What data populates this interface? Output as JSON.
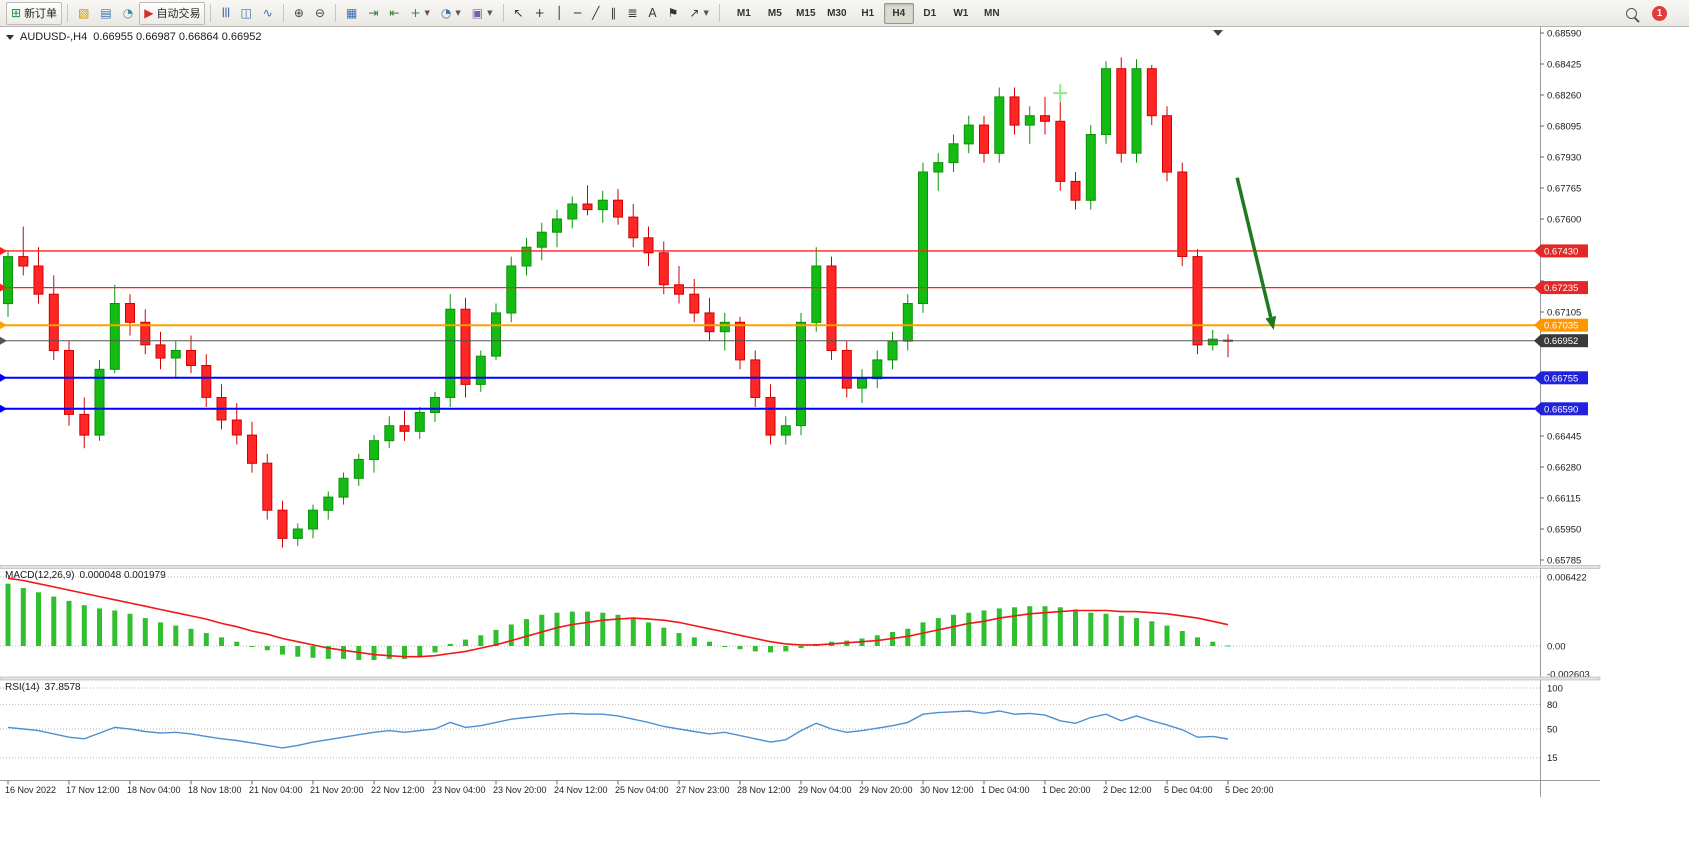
{
  "toolbar": {
    "dropdown_caret": "▼",
    "groups": [
      {
        "items": [
          {
            "name": "new-order-button",
            "glyph": "⊞",
            "glyph_color": "#1e8e3e",
            "label": "新订单"
          }
        ]
      },
      {
        "items": [
          {
            "name": "charts-icon-button",
            "glyph": "▧",
            "glyph_color": "#c99700"
          },
          {
            "name": "profiles-icon-button",
            "glyph": "▤",
            "glyph_color": "#3a6fb0"
          },
          {
            "name": "sounds-icon-button",
            "glyph": "◔",
            "glyph_color": "#3a8fb0"
          },
          {
            "name": "autotrading-button",
            "glyph": "▶",
            "glyph_color": "#d03030",
            "label": "自动交易"
          }
        ]
      },
      {
        "items": [
          {
            "name": "bar-chart-button",
            "glyph": "|||",
            "glyph_color": "#3a6fb0"
          },
          {
            "name": "candlestick-chart-button",
            "glyph": "◫",
            "glyph_color": "#3a6fb0"
          },
          {
            "name": "line-chart-button",
            "glyph": "∿",
            "glyph_color": "#3a6fb0"
          }
        ]
      },
      {
        "items": [
          {
            "name": "zoom-in-button",
            "glyph": "⊕",
            "glyph_color": "#444444"
          },
          {
            "name": "zoom-out-button",
            "glyph": "⊖",
            "glyph_color": "#444444"
          }
        ]
      },
      {
        "items": [
          {
            "name": "tile-windows-button",
            "glyph": "▦",
            "glyph_color": "#3a6fb0"
          },
          {
            "name": "auto-scroll-button",
            "glyph": "⇥",
            "glyph_color": "#2e7d32"
          },
          {
            "name": "chart-shift-button",
            "glyph": "⇤",
            "glyph_color": "#2e7d32"
          },
          {
            "name": "new-chart-button",
            "glyph": "+",
            "glyph_color": "#1e8e3e",
            "dropdown": true
          },
          {
            "name": "periods-button",
            "glyph": "◔",
            "glyph_color": "#3a6fb0",
            "dropdown": true
          },
          {
            "name": "templates-button",
            "glyph": "▣",
            "glyph_color": "#7a5fb0",
            "dropdown": true
          }
        ]
      },
      {
        "items": [
          {
            "name": "cursor-button",
            "glyph": "↖",
            "glyph_color": "#333333"
          },
          {
            "name": "crosshair-button",
            "glyph": "+",
            "glyph_color": "#333333"
          },
          {
            "name": "vertical-line-button",
            "glyph": "│",
            "glyph_color": "#333333"
          },
          {
            "name": "horizontal-line-button",
            "glyph": "─",
            "glyph_color": "#333333"
          },
          {
            "name": "trendline-button",
            "glyph": "╱",
            "glyph_color": "#333333"
          },
          {
            "name": "channel-button",
            "glyph": "∥",
            "glyph_color": "#333333"
          },
          {
            "name": "fibonacci-button",
            "glyph": "≣",
            "glyph_color": "#333333"
          },
          {
            "name": "text-tool-button",
            "glyph": "A",
            "glyph_color": "#333333"
          },
          {
            "name": "label-tool-button",
            "glyph": "⚑",
            "glyph_color": "#333333"
          },
          {
            "name": "shapes-button",
            "glyph": "↗",
            "glyph_color": "#333333",
            "dropdown": true
          }
        ]
      }
    ],
    "timeframes": [
      "M1",
      "M5",
      "M15",
      "M30",
      "H1",
      "H4",
      "D1",
      "W1",
      "MN"
    ],
    "active_timeframe": "H4",
    "notification_count": "1"
  },
  "chart_header": {
    "symbol_period": "AUDUSD-,H4",
    "ohlc_text": "0.66955 0.66987 0.66864 0.66952"
  },
  "chart_data": {
    "type": "candlestick",
    "symbol": "AUDUSD-",
    "timeframe": "H4",
    "current_bar": {
      "open": 0.66955,
      "high": 0.66987,
      "low": 0.66864,
      "close": 0.66952
    },
    "y_axis": {
      "min": 0.65785,
      "max": 0.6859,
      "tick_step": 0.00165
    },
    "style": {
      "up_color": "#13bb13",
      "up_border": "#0a930a",
      "down_color": "#ff2626",
      "down_border": "#d40000"
    },
    "candles": [
      [
        0.6715,
        0.6743,
        0.6708,
        0.674
      ],
      [
        0.674,
        0.6756,
        0.673,
        0.6735
      ],
      [
        0.6735,
        0.6745,
        0.6715,
        0.672
      ],
      [
        0.672,
        0.673,
        0.6685,
        0.669
      ],
      [
        0.669,
        0.6695,
        0.665,
        0.6656
      ],
      [
        0.6656,
        0.6665,
        0.6638,
        0.6645
      ],
      [
        0.6645,
        0.6685,
        0.6642,
        0.668
      ],
      [
        0.668,
        0.6725,
        0.6678,
        0.6715
      ],
      [
        0.6715,
        0.672,
        0.6698,
        0.6705
      ],
      [
        0.6705,
        0.6712,
        0.6688,
        0.6693
      ],
      [
        0.6693,
        0.67,
        0.668,
        0.6686
      ],
      [
        0.6686,
        0.6695,
        0.6675,
        0.669
      ],
      [
        0.669,
        0.6698,
        0.6678,
        0.6682
      ],
      [
        0.6682,
        0.6688,
        0.666,
        0.6665
      ],
      [
        0.6665,
        0.6672,
        0.6648,
        0.6653
      ],
      [
        0.6653,
        0.6662,
        0.664,
        0.6645
      ],
      [
        0.6645,
        0.6652,
        0.6625,
        0.663
      ],
      [
        0.663,
        0.6635,
        0.66,
        0.6605
      ],
      [
        0.6605,
        0.661,
        0.65851,
        0.659
      ],
      [
        0.659,
        0.6598,
        0.6586,
        0.6595
      ],
      [
        0.6595,
        0.6608,
        0.659,
        0.6605
      ],
      [
        0.6605,
        0.6615,
        0.66,
        0.6612
      ],
      [
        0.6612,
        0.6625,
        0.6608,
        0.6622
      ],
      [
        0.6622,
        0.6635,
        0.6618,
        0.6632
      ],
      [
        0.6632,
        0.6645,
        0.6625,
        0.6642
      ],
      [
        0.6642,
        0.6655,
        0.6638,
        0.665
      ],
      [
        0.665,
        0.6658,
        0.6642,
        0.6647
      ],
      [
        0.6647,
        0.666,
        0.6643,
        0.6657
      ],
      [
        0.6657,
        0.6668,
        0.6652,
        0.6665
      ],
      [
        0.6665,
        0.672,
        0.666,
        0.6712
      ],
      [
        0.6712,
        0.6718,
        0.6665,
        0.6672
      ],
      [
        0.6672,
        0.669,
        0.6668,
        0.6687
      ],
      [
        0.6687,
        0.6715,
        0.6685,
        0.671
      ],
      [
        0.671,
        0.674,
        0.6705,
        0.6735
      ],
      [
        0.6735,
        0.675,
        0.673,
        0.6745
      ],
      [
        0.6745,
        0.6758,
        0.6738,
        0.6753
      ],
      [
        0.6753,
        0.6765,
        0.6745,
        0.676
      ],
      [
        0.676,
        0.6772,
        0.6755,
        0.6768
      ],
      [
        0.6768,
        0.6778,
        0.6762,
        0.6765
      ],
      [
        0.6765,
        0.6775,
        0.6758,
        0.677
      ],
      [
        0.677,
        0.6776,
        0.6757,
        0.6761
      ],
      [
        0.6761,
        0.6768,
        0.6745,
        0.675
      ],
      [
        0.675,
        0.6756,
        0.6735,
        0.6742
      ],
      [
        0.6742,
        0.6748,
        0.672,
        0.6725
      ],
      [
        0.6725,
        0.6735,
        0.6715,
        0.672
      ],
      [
        0.672,
        0.6728,
        0.6705,
        0.671
      ],
      [
        0.671,
        0.6718,
        0.6695,
        0.67
      ],
      [
        0.67,
        0.671,
        0.669,
        0.6705
      ],
      [
        0.6705,
        0.6708,
        0.668,
        0.6685
      ],
      [
        0.6685,
        0.669,
        0.666,
        0.6665
      ],
      [
        0.6665,
        0.6672,
        0.664,
        0.6645
      ],
      [
        0.6645,
        0.6655,
        0.664,
        0.665
      ],
      [
        0.665,
        0.671,
        0.6645,
        0.6705
      ],
      [
        0.6705,
        0.6745,
        0.67,
        0.6735
      ],
      [
        0.6735,
        0.674,
        0.6685,
        0.669
      ],
      [
        0.669,
        0.6695,
        0.6665,
        0.667
      ],
      [
        0.667,
        0.668,
        0.6662,
        0.6675
      ],
      [
        0.6675,
        0.669,
        0.667,
        0.6685
      ],
      [
        0.6685,
        0.67,
        0.668,
        0.6695
      ],
      [
        0.6695,
        0.672,
        0.669,
        0.6715
      ],
      [
        0.6715,
        0.679,
        0.671,
        0.6785
      ],
      [
        0.6785,
        0.6795,
        0.6775,
        0.679
      ],
      [
        0.679,
        0.6805,
        0.6785,
        0.68
      ],
      [
        0.68,
        0.6815,
        0.6795,
        0.681
      ],
      [
        0.681,
        0.6815,
        0.679,
        0.6795
      ],
      [
        0.6795,
        0.683,
        0.679,
        0.6825
      ],
      [
        0.6825,
        0.683,
        0.6805,
        0.681
      ],
      [
        0.681,
        0.682,
        0.68,
        0.6815
      ],
      [
        0.6815,
        0.6825,
        0.6805,
        0.6812
      ],
      [
        0.6812,
        0.6828,
        0.6775,
        0.678
      ],
      [
        0.678,
        0.6785,
        0.6765,
        0.677
      ],
      [
        0.677,
        0.681,
        0.6765,
        0.6805
      ],
      [
        0.6805,
        0.6844,
        0.68,
        0.684
      ],
      [
        0.684,
        0.6846,
        0.679,
        0.6795
      ],
      [
        0.6795,
        0.6845,
        0.679,
        0.684
      ],
      [
        0.684,
        0.6842,
        0.681,
        0.6815
      ],
      [
        0.6815,
        0.682,
        0.678,
        0.6785
      ],
      [
        0.6785,
        0.679,
        0.6735,
        0.674
      ],
      [
        0.674,
        0.6744,
        0.6688,
        0.6693
      ],
      [
        0.6693,
        0.6701,
        0.669,
        0.6696
      ],
      [
        0.66955,
        0.66987,
        0.66864,
        0.66952
      ]
    ],
    "time_labels": [
      "16 Nov 2022",
      "17 Nov 12:00",
      "18 Nov 04:00",
      "18 Nov 18:00",
      "21 Nov 04:00",
      "21 Nov 20:00",
      "22 Nov 12:00",
      "23 Nov 04:00",
      "23 Nov 20:00",
      "24 Nov 12:00",
      "25 Nov 04:00",
      "27 Nov 23:00",
      "28 Nov 12:00",
      "29 Nov 04:00",
      "29 Nov 20:00",
      "30 Nov 12:00",
      "1 Dec 04:00",
      "1 Dec 20:00",
      "2 Dec 12:00",
      "5 Dec 04:00",
      "5 Dec 20:00"
    ],
    "levels": [
      {
        "price": 0.6743,
        "label": "0.67430",
        "color": "#ff2020",
        "tag": "#e22828",
        "width": 1.4
      },
      {
        "price": 0.67235,
        "label": "0.67235",
        "color": "#ff2020",
        "tag": "#e22828",
        "width": 1.2
      },
      {
        "price": 0.67035,
        "label": "0.67035",
        "color": "#ffa000",
        "tag": "#ff9800",
        "width": 2
      },
      {
        "price": 0.66952,
        "label": "0.66952",
        "color": "#555555",
        "tag": "#3a3a3a",
        "width": 1,
        "current": true
      },
      {
        "price": 0.66755,
        "label": "0.66755",
        "color": "#0000ff",
        "tag": "#2222dd",
        "width": 2
      },
      {
        "price": 0.6659,
        "label": "0.66590",
        "color": "#0000ff",
        "tag": "#2222dd",
        "width": 2
      }
    ],
    "annotations": {
      "down_arrow": {
        "from": {
          "index": 80.6,
          "price": 0.6782
        },
        "to": {
          "index": 83.0,
          "price": 0.6701
        },
        "color": "#1e7a1e"
      },
      "cross_marker": {
        "index": 69,
        "price": 0.6827,
        "color": "#8ce98c"
      },
      "shift_marker_color": "#444444"
    },
    "macd": {
      "label": "MACD(12,26,9)",
      "values_text": "0.000048 0.001979",
      "main_value": 4.8e-05,
      "signal_value": 0.001979,
      "scale_max": 0.006422,
      "axis": [
        {
          "value": 0.006422,
          "label": "0.006422"
        },
        {
          "value": 0,
          "label": "0.00"
        },
        {
          "value": -0.002603,
          "label": "-0.002603"
        }
      ],
      "histogram_color": "#2fbf2f",
      "signal_color": "#f01818",
      "histogram": [
        0.0058,
        0.0054,
        0.005,
        0.0046,
        0.0042,
        0.0038,
        0.0035,
        0.0033,
        0.003,
        0.0026,
        0.0022,
        0.0019,
        0.0016,
        0.0012,
        0.0008,
        0.0004,
        0.0,
        -0.0004,
        -0.0008,
        -0.001,
        -0.0011,
        -0.0012,
        -0.0012,
        -0.0013,
        -0.0013,
        -0.0012,
        -0.0012,
        -0.001,
        -0.0006,
        0.0002,
        0.0006,
        0.001,
        0.0015,
        0.002,
        0.0025,
        0.0029,
        0.0031,
        0.0032,
        0.0032,
        0.0031,
        0.0029,
        0.0026,
        0.0022,
        0.0017,
        0.0012,
        0.0008,
        0.0004,
        0.0,
        -0.0003,
        -0.0005,
        -0.0006,
        -0.0005,
        -0.0002,
        0.0002,
        0.0004,
        0.0005,
        0.0007,
        0.001,
        0.0013,
        0.0016,
        0.0022,
        0.0026,
        0.0029,
        0.0031,
        0.0033,
        0.0035,
        0.0036,
        0.0037,
        0.0037,
        0.0036,
        0.0034,
        0.0031,
        0.003,
        0.0028,
        0.0026,
        0.0023,
        0.0019,
        0.0014,
        0.0008,
        0.0004,
        4.8e-05
      ],
      "signal": [
        0.0063,
        0.0061,
        0.0058,
        0.0055,
        0.0052,
        0.0049,
        0.0046,
        0.0043,
        0.004,
        0.0037,
        0.0034,
        0.0031,
        0.0028,
        0.0025,
        0.0021,
        0.0018,
        0.0014,
        0.0011,
        0.0007,
        0.0004,
        0.0001,
        -0.0002,
        -0.0004,
        -0.0006,
        -0.0008,
        -0.0009,
        -0.001,
        -0.001,
        -0.0009,
        -0.0007,
        -0.0005,
        -0.0002,
        0.0001,
        0.0005,
        0.0009,
        0.0013,
        0.0017,
        0.002,
        0.0022,
        0.0024,
        0.0025,
        0.0026,
        0.0025,
        0.0024,
        0.0022,
        0.0019,
        0.0016,
        0.0013,
        0.001,
        0.0007,
        0.0004,
        0.0002,
        0.0001,
        0.0001,
        0.0002,
        0.0003,
        0.0004,
        0.0005,
        0.0007,
        0.0009,
        0.0012,
        0.0015,
        0.0018,
        0.0021,
        0.0023,
        0.0026,
        0.0028,
        0.003,
        0.0031,
        0.0032,
        0.0033,
        0.0033,
        0.0033,
        0.0032,
        0.0032,
        0.0031,
        0.003,
        0.0028,
        0.0026,
        0.0023,
        0.001979
      ]
    },
    "rsi": {
      "label": "RSI(14)",
      "value_text": "37.8578",
      "value": 37.8578,
      "line_color": "#4d8fd1",
      "axis": [
        {
          "value": 100,
          "label": "100"
        },
        {
          "value": 80,
          "label": "80"
        },
        {
          "value": 50,
          "label": "50"
        },
        {
          "value": 15,
          "label": "15"
        }
      ],
      "values": [
        52,
        50,
        48,
        44,
        40,
        38,
        45,
        52,
        50,
        47,
        45,
        46,
        44,
        41,
        38,
        36,
        33,
        30,
        27,
        30,
        34,
        37,
        40,
        43,
        46,
        48,
        46,
        48,
        50,
        58,
        52,
        54,
        58,
        62,
        64,
        66,
        68,
        69,
        68,
        68,
        66,
        62,
        58,
        53,
        50,
        47,
        44,
        46,
        42,
        38,
        34,
        37,
        48,
        57,
        50,
        46,
        48,
        51,
        54,
        58,
        68,
        70,
        71,
        72,
        69,
        72,
        68,
        69,
        67,
        60,
        57,
        64,
        68,
        60,
        66,
        60,
        55,
        49,
        40,
        41,
        37.8578
      ]
    }
  }
}
